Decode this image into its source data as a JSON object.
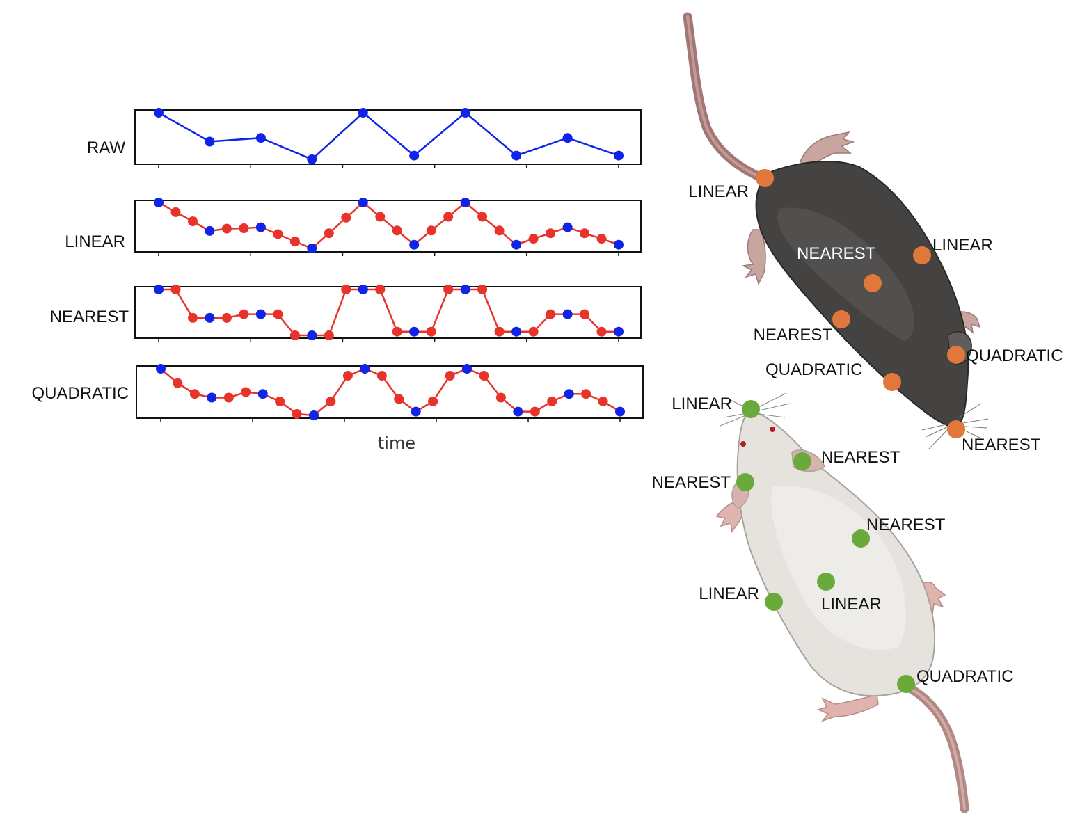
{
  "colors": {
    "raw": "#1024e8",
    "interp": "#e8332b",
    "mouse_dark_kp": "#e0783c",
    "mouse_light_kp": "#6aaa3a",
    "mouse_dark_label": "#ffffff",
    "label_text": "#111111"
  },
  "chart_data": {
    "type": "line",
    "xlabel": "time",
    "x_ticks": 6,
    "series_rows": [
      {
        "label": "RAW",
        "points": [
          {
            "v": 1.0,
            "raw": true
          },
          {
            "v": 0.38,
            "raw": true
          },
          {
            "v": 0.46,
            "raw": true
          },
          {
            "v": 0.0,
            "raw": true
          },
          {
            "v": 1.0,
            "raw": true
          },
          {
            "v": 0.08,
            "raw": true
          },
          {
            "v": 1.0,
            "raw": true
          },
          {
            "v": 0.08,
            "raw": true
          },
          {
            "v": 0.46,
            "raw": true
          },
          {
            "v": 0.08,
            "raw": true
          }
        ]
      },
      {
        "label": "LINEAR",
        "points": [
          {
            "v": 1.0,
            "raw": true
          },
          {
            "v": 0.79,
            "raw": false
          },
          {
            "v": 0.59,
            "raw": false
          },
          {
            "v": 0.38,
            "raw": true
          },
          {
            "v": 0.43,
            "raw": false
          },
          {
            "v": 0.44,
            "raw": false
          },
          {
            "v": 0.46,
            "raw": true
          },
          {
            "v": 0.31,
            "raw": false
          },
          {
            "v": 0.15,
            "raw": false
          },
          {
            "v": 0.0,
            "raw": true
          },
          {
            "v": 0.33,
            "raw": false
          },
          {
            "v": 0.67,
            "raw": false
          },
          {
            "v": 1.0,
            "raw": true
          },
          {
            "v": 0.69,
            "raw": false
          },
          {
            "v": 0.39,
            "raw": false
          },
          {
            "v": 0.08,
            "raw": true
          },
          {
            "v": 0.39,
            "raw": false
          },
          {
            "v": 0.69,
            "raw": false
          },
          {
            "v": 1.0,
            "raw": true
          },
          {
            "v": 0.69,
            "raw": false
          },
          {
            "v": 0.39,
            "raw": false
          },
          {
            "v": 0.08,
            "raw": true
          },
          {
            "v": 0.21,
            "raw": false
          },
          {
            "v": 0.33,
            "raw": false
          },
          {
            "v": 0.46,
            "raw": true
          },
          {
            "v": 0.33,
            "raw": false
          },
          {
            "v": 0.21,
            "raw": false
          },
          {
            "v": 0.08,
            "raw": true
          }
        ]
      },
      {
        "label": "NEAREST",
        "points": [
          {
            "v": 1.0,
            "raw": true
          },
          {
            "v": 1.0,
            "raw": false
          },
          {
            "v": 0.38,
            "raw": false
          },
          {
            "v": 0.38,
            "raw": true
          },
          {
            "v": 0.38,
            "raw": false
          },
          {
            "v": 0.46,
            "raw": false
          },
          {
            "v": 0.46,
            "raw": true
          },
          {
            "v": 0.46,
            "raw": false
          },
          {
            "v": 0.0,
            "raw": false
          },
          {
            "v": 0.0,
            "raw": true
          },
          {
            "v": 0.0,
            "raw": false
          },
          {
            "v": 1.0,
            "raw": false
          },
          {
            "v": 1.0,
            "raw": true
          },
          {
            "v": 1.0,
            "raw": false
          },
          {
            "v": 0.08,
            "raw": false
          },
          {
            "v": 0.08,
            "raw": true
          },
          {
            "v": 0.08,
            "raw": false
          },
          {
            "v": 1.0,
            "raw": false
          },
          {
            "v": 1.0,
            "raw": true
          },
          {
            "v": 1.0,
            "raw": false
          },
          {
            "v": 0.08,
            "raw": false
          },
          {
            "v": 0.08,
            "raw": true
          },
          {
            "v": 0.08,
            "raw": false
          },
          {
            "v": 0.46,
            "raw": false
          },
          {
            "v": 0.46,
            "raw": true
          },
          {
            "v": 0.46,
            "raw": false
          },
          {
            "v": 0.08,
            "raw": false
          },
          {
            "v": 0.08,
            "raw": true
          }
        ]
      },
      {
        "label": "QUADRATIC",
        "points": [
          {
            "v": 1.0,
            "raw": true
          },
          {
            "v": 0.69,
            "raw": false
          },
          {
            "v": 0.46,
            "raw": false
          },
          {
            "v": 0.38,
            "raw": true
          },
          {
            "v": 0.38,
            "raw": false
          },
          {
            "v": 0.5,
            "raw": false
          },
          {
            "v": 0.46,
            "raw": true
          },
          {
            "v": 0.3,
            "raw": false
          },
          {
            "v": 0.03,
            "raw": false
          },
          {
            "v": 0.0,
            "raw": true
          },
          {
            "v": 0.3,
            "raw": false
          },
          {
            "v": 0.85,
            "raw": false
          },
          {
            "v": 1.0,
            "raw": true
          },
          {
            "v": 0.85,
            "raw": false
          },
          {
            "v": 0.35,
            "raw": false
          },
          {
            "v": 0.08,
            "raw": true
          },
          {
            "v": 0.3,
            "raw": false
          },
          {
            "v": 0.85,
            "raw": false
          },
          {
            "v": 1.0,
            "raw": true
          },
          {
            "v": 0.85,
            "raw": false
          },
          {
            "v": 0.38,
            "raw": false
          },
          {
            "v": 0.08,
            "raw": true
          },
          {
            "v": 0.08,
            "raw": false
          },
          {
            "v": 0.3,
            "raw": false
          },
          {
            "v": 0.46,
            "raw": true
          },
          {
            "v": 0.46,
            "raw": false
          },
          {
            "v": 0.3,
            "raw": false
          },
          {
            "v": 0.08,
            "raw": true
          }
        ]
      }
    ]
  },
  "mice": {
    "dark": {
      "keypoints": [
        {
          "label": "LINEAR"
        },
        {
          "label": "LINEAR"
        },
        {
          "label": "NEAREST"
        },
        {
          "label": "NEAREST"
        },
        {
          "label": "QUADRATIC"
        },
        {
          "label": "QUADRATIC"
        },
        {
          "label": "NEAREST"
        }
      ]
    },
    "light": {
      "keypoints": [
        {
          "label": "LINEAR"
        },
        {
          "label": "NEAREST"
        },
        {
          "label": "NEAREST"
        },
        {
          "label": "NEAREST"
        },
        {
          "label": "LINEAR"
        },
        {
          "label": "LINEAR"
        },
        {
          "label": "QUADRATIC"
        }
      ]
    }
  }
}
